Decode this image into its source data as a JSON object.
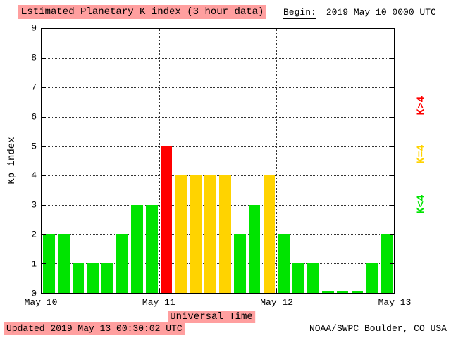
{
  "title": "Estimated Planetary K index (3 hour data)",
  "header": {
    "begin_label": "Begin:",
    "begin_value": "2019 May 10 0000 UTC"
  },
  "footer": {
    "updated": "Updated 2019 May 13 00:30:02 UTC",
    "source": "NOAA/SWPC Boulder, CO USA"
  },
  "axes": {
    "ylabel": "Kp index",
    "xlabel": "Universal Time",
    "yticks": [
      0,
      1,
      2,
      3,
      4,
      5,
      6,
      7,
      8,
      9
    ],
    "xticklabels": [
      "May 10",
      "May 11",
      "May 12",
      "May 13"
    ]
  },
  "legend": [
    {
      "label": "K>4",
      "color": "#ff0000"
    },
    {
      "label": "K=4",
      "color": "#ffd300"
    },
    {
      "label": "K<4",
      "color": "#00e400"
    }
  ],
  "colors": {
    "green": "#00e400",
    "yellow": "#ffd300",
    "red": "#ff0000",
    "highlight": "#ff9f9f",
    "grid": "#333333"
  },
  "chart_data": {
    "type": "bar",
    "title": "Estimated Planetary K index (3 hour data)",
    "begin": "2019 May 10 0000 UTC",
    "xlabel": "Universal Time",
    "ylabel": "Kp index",
    "ylim": [
      0,
      9
    ],
    "bin_hours": 3,
    "day_boundaries": [
      "May 10",
      "May 11",
      "May 12",
      "May 13"
    ],
    "values": [
      2,
      2,
      1,
      1,
      1,
      2,
      3,
      3,
      5,
      4,
      4,
      4,
      4,
      2,
      3,
      4,
      2,
      1,
      1,
      0,
      0,
      0,
      1,
      2
    ],
    "color_rule": {
      "lt4": "#00e400",
      "eq4": "#ffd300",
      "gt4": "#ff0000"
    },
    "legend_position": "right",
    "grid": "dotted horizontal at each integer, dotted vertical at day boundaries"
  }
}
